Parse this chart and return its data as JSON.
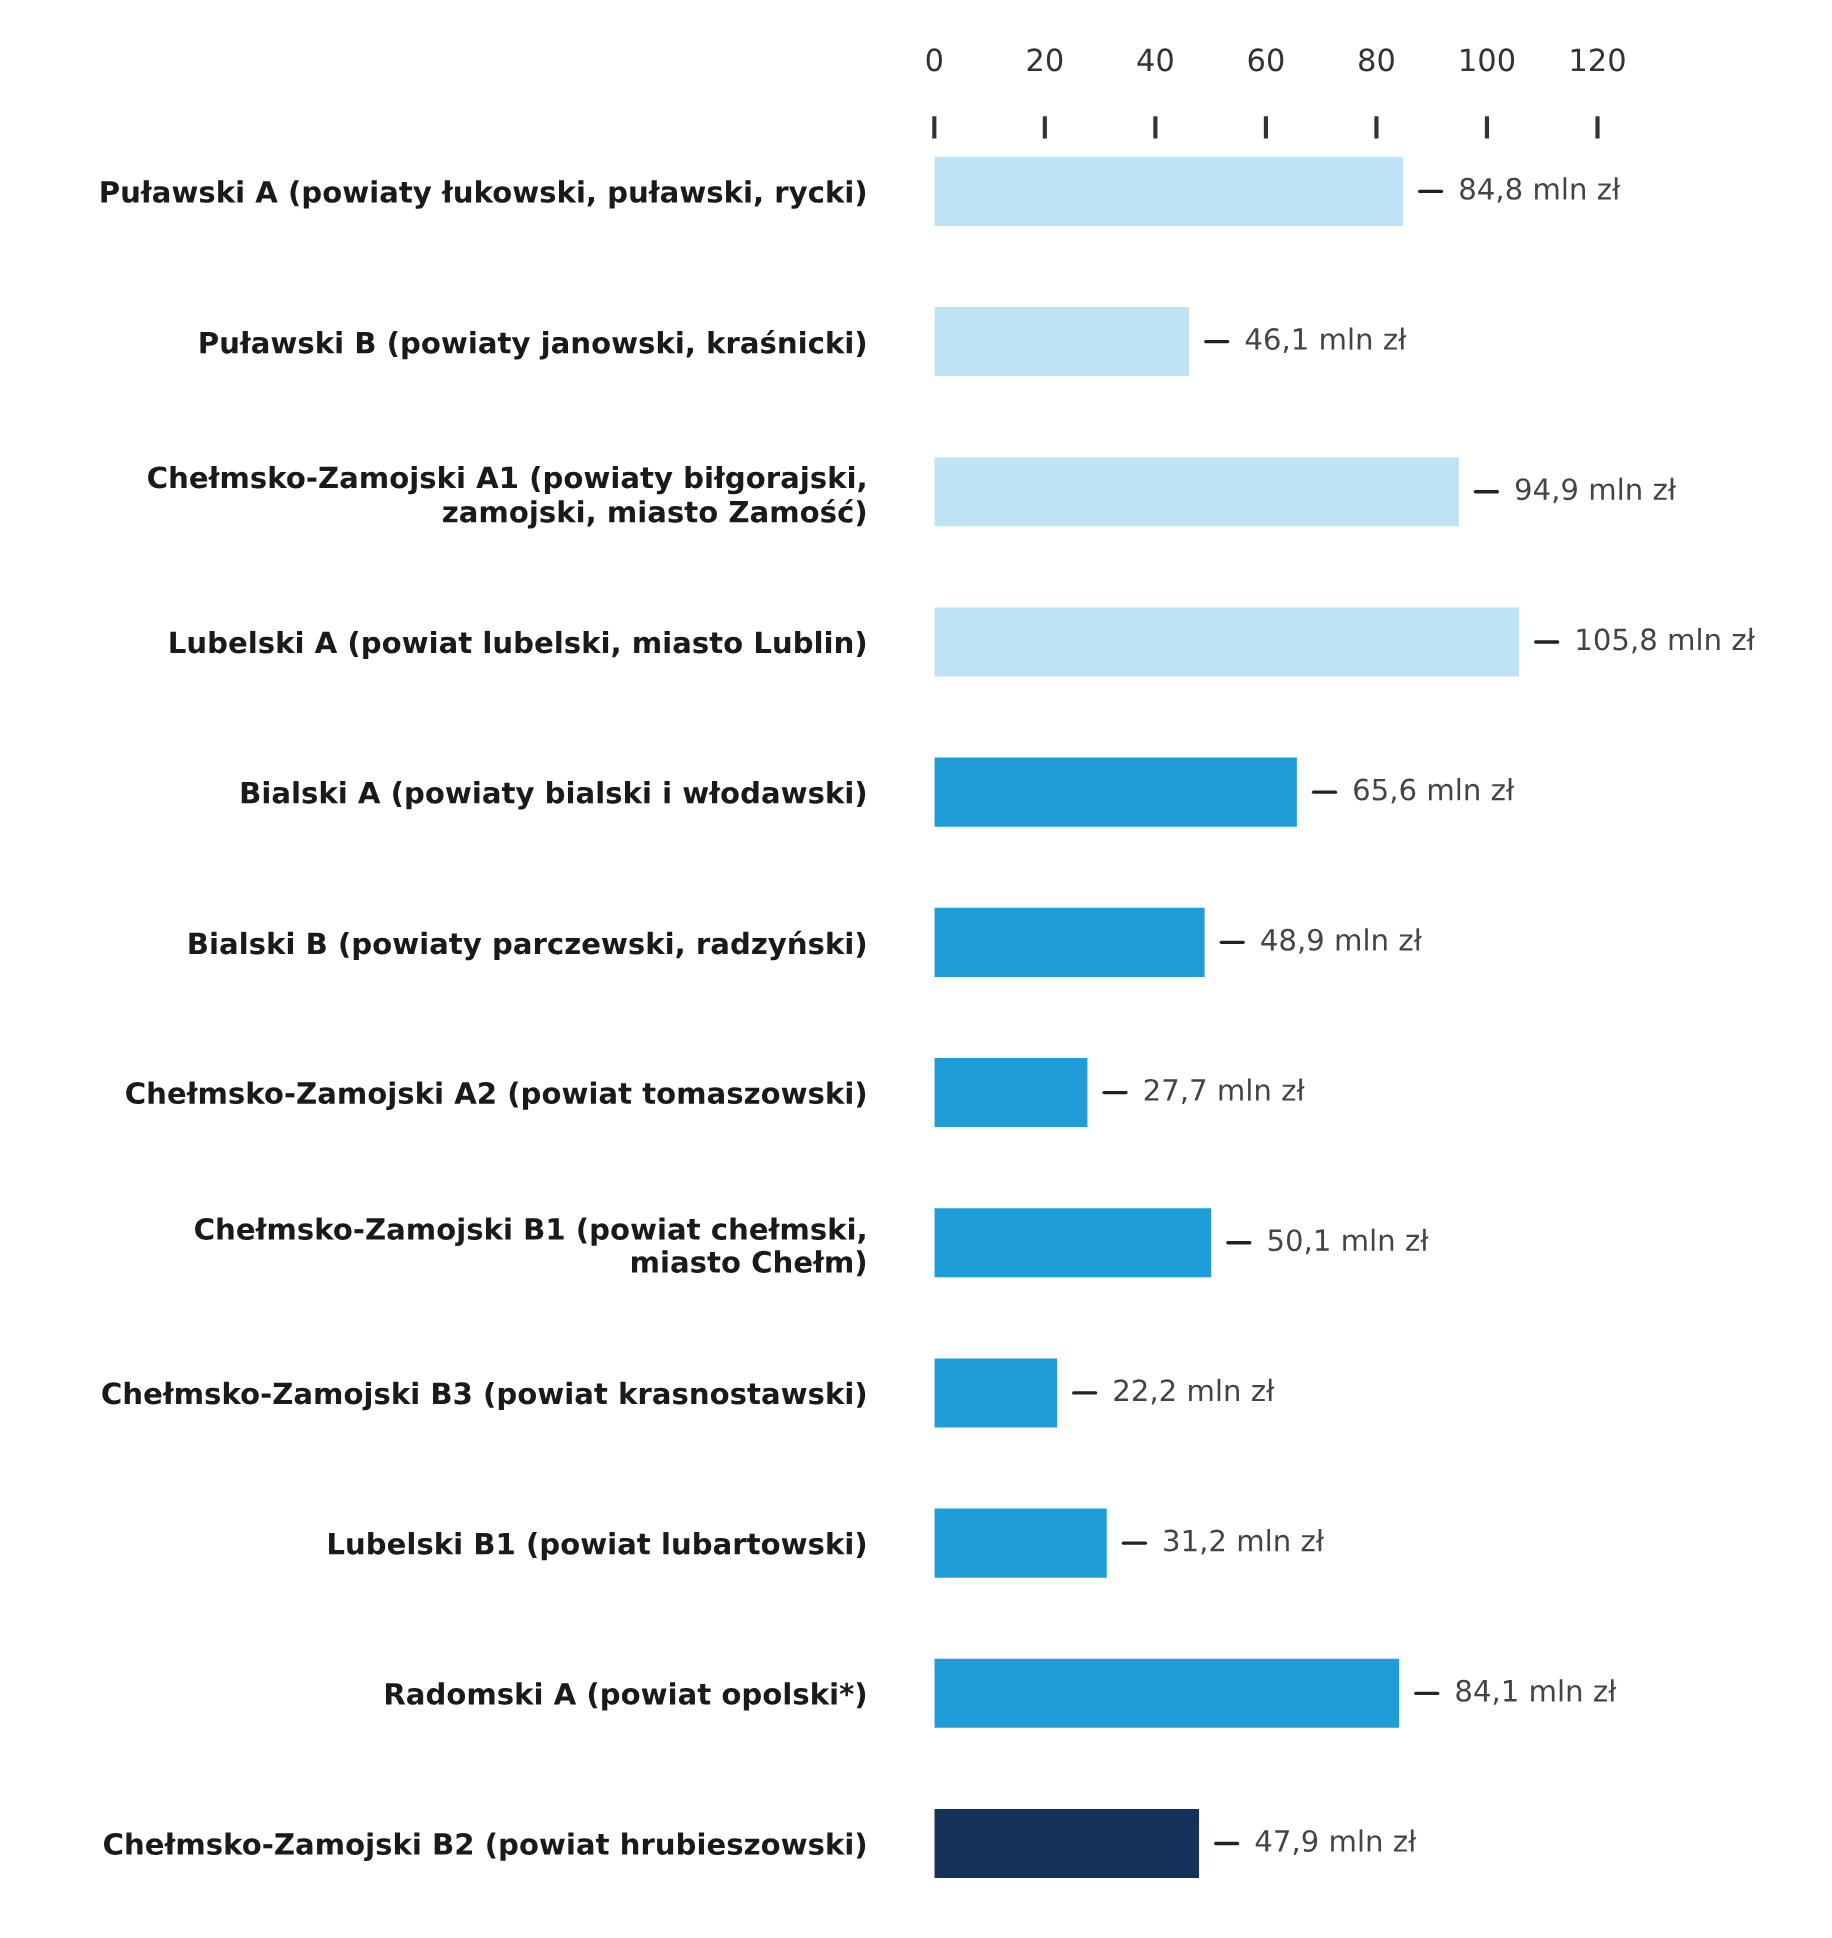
{
  "chart_data": {
    "type": "bar",
    "orientation": "horizontal",
    "categories": [
      "Puławski A (powiaty łukowski, puławski, rycki)",
      "Puławski B (powiaty janowski, kraśnicki)",
      "Chełmsko-Zamojski A1 (powiaty biłgorajski,\nzamojski, miasto Zamość)",
      "Lubelski A (powiat lubelski, miasto Lublin)",
      "Bialski A (powiaty bialski i włodawski)",
      "Bialski B (powiaty parczewski, radzyński)",
      "Chełmsko-Zamojski A2 (powiat tomaszowski)",
      "Chełmsko-Zamojski B1 (powiat chełmski,\nmiasto Chełm)",
      "Chełmsko-Zamojski B3 (powiat krasnostawski)",
      "Lubelski B1 (powiat lubartowski)",
      "Radomski A (powiat opolski*)",
      "Chełmsko-Zamojski B2 (powiat hrubieszowski)"
    ],
    "values": [
      84.8,
      46.1,
      94.9,
      105.8,
      65.6,
      48.9,
      27.7,
      50.1,
      22.2,
      31.2,
      84.1,
      47.9
    ],
    "colors": [
      "#bde3f5",
      "#bde3f5",
      "#bde3f5",
      "#bde3f5",
      "#1e9dd8",
      "#1e9dd8",
      "#1e9dd8",
      "#1e9dd8",
      "#1e9dd8",
      "#1e9dd8",
      "#1e9dd8",
      "#17325a"
    ],
    "value_labels": [
      "84,8 mln zł",
      "46,1 mln zł",
      "94,9 mln zł",
      "105,8 mln zł",
      "65,6 mln zł",
      "48,9 mln zł",
      "27,7 mln zł",
      "50,1 mln zł",
      "22,2 mln zł",
      "31,2 mln zł",
      "84,1 mln zł",
      "47,9 mln zł"
    ],
    "xlim": [
      0,
      120
    ],
    "xticks": [
      0,
      20,
      40,
      60,
      80,
      100,
      120
    ]
  }
}
